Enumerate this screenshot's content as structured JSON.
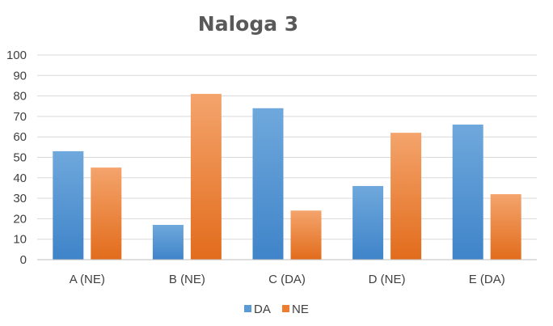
{
  "chart_data": {
    "type": "bar",
    "title": "Naloga 3",
    "categories": [
      "A (NE)",
      "B (NE)",
      "C (DA)",
      "D (NE)",
      "E (DA)"
    ],
    "series": [
      {
        "name": "DA",
        "values": [
          53,
          17,
          74,
          36,
          66
        ],
        "color": "#5B9BD5"
      },
      {
        "name": "NE",
        "values": [
          45,
          81,
          24,
          62,
          32
        ],
        "color": "#ED7D31"
      }
    ],
    "ylim": [
      0,
      100
    ],
    "yticks": [
      0,
      10,
      20,
      30,
      40,
      50,
      60,
      70,
      80,
      90,
      100
    ],
    "xlabel": "",
    "ylabel": "",
    "grid": true,
    "legend": "bottom"
  }
}
